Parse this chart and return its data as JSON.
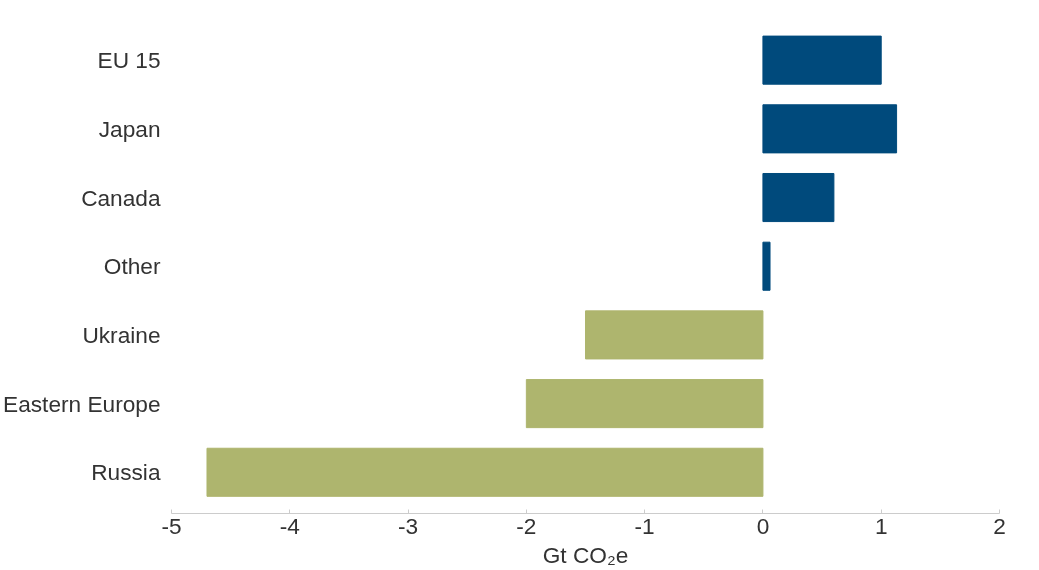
{
  "chart_data": {
    "type": "bar",
    "orientation": "horizontal",
    "categories": [
      "EU 15",
      "Japan",
      "Canada",
      "Other",
      "Ukraine",
      "Eastern Europe",
      "Russia"
    ],
    "values": [
      1.0,
      1.13,
      0.6,
      0.06,
      -1.5,
      -2.0,
      -4.7
    ],
    "colors": [
      "#004a7c",
      "#004a7c",
      "#004a7c",
      "#004a7c",
      "#aeb56e",
      "#aeb56e",
      "#aeb56e"
    ],
    "xlim": [
      -5,
      2
    ],
    "xticks": [
      -5,
      -4,
      -3,
      -2,
      -1,
      0,
      1,
      2
    ],
    "xlabel": "Gt CO₂e",
    "grid": false
  }
}
